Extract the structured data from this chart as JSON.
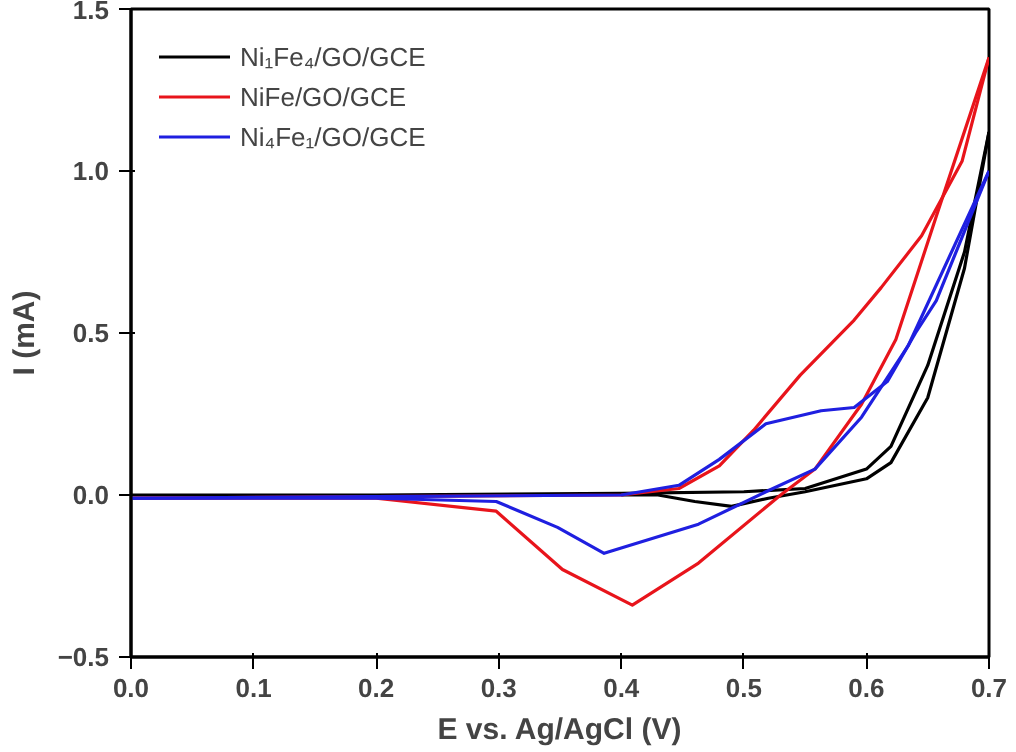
{
  "chart_data": {
    "type": "line",
    "xlabel": "E vs. Ag/AgCl (V)",
    "ylabel": "I (mA)",
    "xlim": [
      0.0,
      0.7
    ],
    "xticks": [
      {
        "value": 0,
        "label": "0.0"
      },
      0.1,
      0.2,
      0.3,
      0.4,
      0.5,
      0.6,
      0.7
    ],
    "ylim": [
      -0.5,
      1.5
    ],
    "yticks": [
      -0.5,
      {
        "value": 0,
        "label": "0.0"
      },
      0.5,
      {
        "value": 1,
        "label": "1.0"
      },
      1.5
    ],
    "grid": false,
    "legend": "top left",
    "marker": "none",
    "line_style": "solid",
    "series": [
      {
        "name": "Ni₁Fe₄/GO/GCE",
        "color": "#000000",
        "x": [
          0.0,
          0.2,
          0.4,
          0.5,
          0.55,
          0.6,
          0.62,
          0.65,
          0.68,
          0.7
        ],
        "values": [
          0.0,
          0.0,
          0.005,
          0.01,
          0.02,
          0.08,
          0.15,
          0.4,
          0.75,
          1.12
        ]
      },
      {
        "color": "#000000",
        "x": [
          0.4,
          0.43,
          0.46,
          0.49,
          0.52,
          0.55,
          0.6,
          0.62,
          0.65,
          0.68,
          0.7
        ],
        "values": [
          0.0,
          0.0,
          -0.02,
          -0.035,
          -0.01,
          0.01,
          0.05,
          0.1,
          0.3,
          0.7,
          1.12
        ]
      },
      {
        "name": "NiFe/GO/GCE",
        "color": "#e8141b",
        "x": [
          0.0,
          0.2,
          0.4,
          0.447,
          0.48,
          0.508,
          0.546,
          0.59,
          0.612,
          0.645,
          0.678,
          0.7
        ],
        "values": [
          -0.01,
          -0.005,
          0.0,
          0.02,
          0.09,
          0.2,
          0.37,
          0.54,
          0.64,
          0.8,
          1.03,
          1.35
        ]
      },
      {
        "color": "#e8141b",
        "x": [
          0.0,
          0.2,
          0.298,
          0.352,
          0.409,
          0.463,
          0.53,
          0.558,
          0.596,
          0.624,
          0.657,
          0.7
        ],
        "values": [
          -0.01,
          -0.01,
          -0.05,
          -0.23,
          -0.34,
          -0.21,
          0.0,
          0.08,
          0.28,
          0.48,
          0.86,
          1.35
        ]
      },
      {
        "name": "Ni₄Fe₁/GO/GCE",
        "color": "#1f1fe0",
        "x": [
          0.0,
          0.2,
          0.4,
          0.447,
          0.48,
          0.518,
          0.563,
          0.59,
          0.617,
          0.64,
          0.657,
          0.7
        ],
        "values": [
          -0.01,
          -0.005,
          0.0,
          0.03,
          0.11,
          0.22,
          0.26,
          0.27,
          0.35,
          0.5,
          0.6,
          1.0
        ]
      },
      {
        "color": "#1f1fe0",
        "x": [
          0.0,
          0.2,
          0.298,
          0.348,
          0.386,
          0.463,
          0.518,
          0.558,
          0.596,
          0.634,
          0.7
        ],
        "values": [
          -0.01,
          -0.01,
          -0.02,
          -0.1,
          -0.18,
          -0.09,
          0.01,
          0.08,
          0.24,
          0.46,
          1.0
        ]
      }
    ]
  }
}
